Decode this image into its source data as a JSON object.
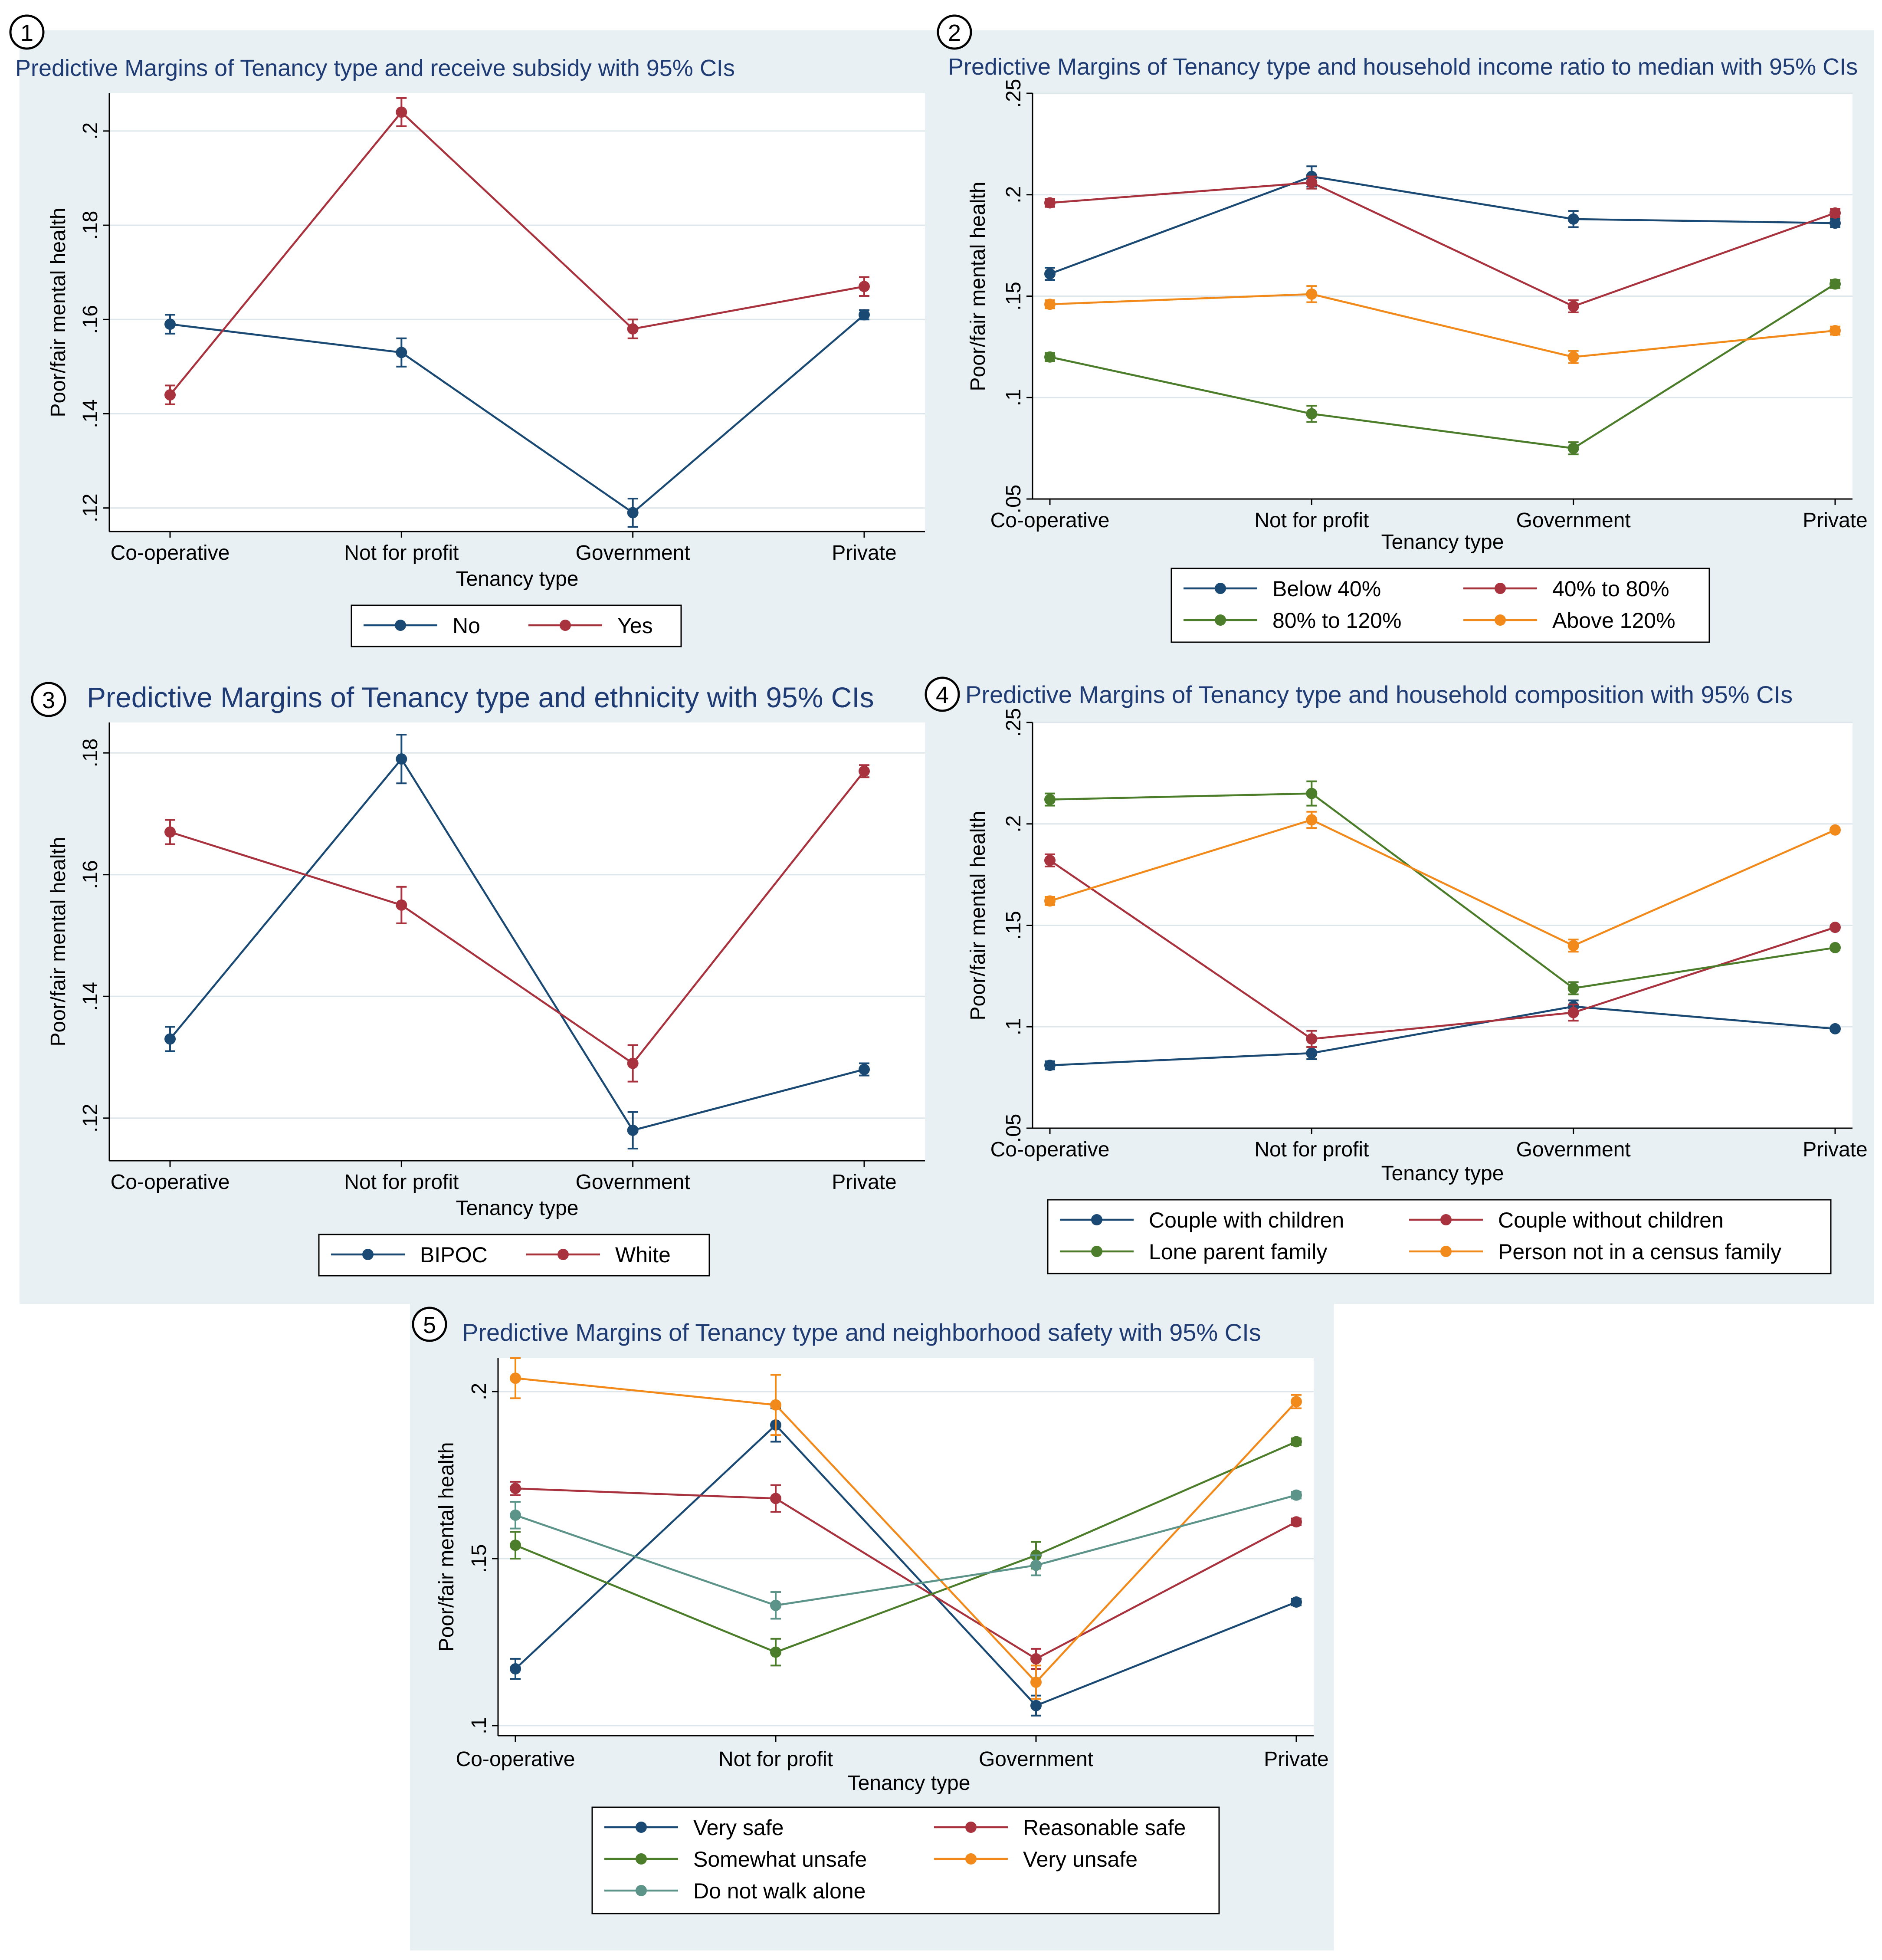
{
  "colors": {
    "panel_bg": "#e8f0f3",
    "plot_bg": "#ffffff",
    "grid": "#dde6ea",
    "title": "#1f3b73",
    "navy": "#1a4a74",
    "maroon": "#a8323e",
    "green": "#4b7d2a",
    "orange": "#f28a1b",
    "teal": "#5d9489"
  },
  "chart_data": [
    {
      "id": "panel-1",
      "number": "1",
      "type": "line",
      "title": "Predictive Margins of Tenancy type and receive subsidy with 95% CIs",
      "xlabel": "Tenancy type",
      "ylabel": "Poor/fair mental health",
      "categories": [
        "Co-operative",
        "Not for profit",
        "Government",
        "Private"
      ],
      "ylim": [
        0.115,
        0.208
      ],
      "yticks": [
        0.12,
        0.14,
        0.16,
        0.18,
        0.2
      ],
      "ytick_labels": [
        ".12",
        ".14",
        ".16",
        ".18",
        ".2"
      ],
      "legend_columns": 2,
      "series": [
        {
          "name": "No",
          "color": "#1a4a74",
          "values": [
            0.159,
            0.153,
            0.119,
            0.161
          ],
          "ci": [
            0.002,
            0.003,
            0.003,
            0.001
          ]
        },
        {
          "name": "Yes",
          "color": "#a8323e",
          "values": [
            0.144,
            0.204,
            0.158,
            0.167
          ],
          "ci": [
            0.002,
            0.003,
            0.002,
            0.002
          ]
        }
      ]
    },
    {
      "id": "panel-2",
      "number": "2",
      "type": "line",
      "title": "Predictive Margins of Tenancy type and household income ratio to median with 95% CIs",
      "xlabel": "Tenancy type",
      "ylabel": "Poor/fair mental health",
      "categories": [
        "Co-operative",
        "Not for profit",
        "Government",
        "Private"
      ],
      "ylim": [
        0.05,
        0.25
      ],
      "yticks": [
        0.05,
        0.1,
        0.15,
        0.2,
        0.25
      ],
      "ytick_labels": [
        ".05",
        ".1",
        ".15",
        ".2",
        ".25"
      ],
      "legend_columns": 2,
      "series": [
        {
          "name": "Below 40%",
          "color": "#1a4a74",
          "values": [
            0.161,
            0.209,
            0.188,
            0.186
          ],
          "ci": [
            0.003,
            0.005,
            0.004,
            0.002
          ]
        },
        {
          "name": "40% to 80%",
          "color": "#a8323e",
          "values": [
            0.196,
            0.206,
            0.145,
            0.191
          ],
          "ci": [
            0.002,
            0.003,
            0.003,
            0.002
          ]
        },
        {
          "name": "80% to 120%",
          "color": "#4b7d2a",
          "values": [
            0.12,
            0.092,
            0.075,
            0.156
          ],
          "ci": [
            0.002,
            0.004,
            0.003,
            0.002
          ]
        },
        {
          "name": "Above 120%",
          "color": "#f28a1b",
          "values": [
            0.146,
            0.151,
            0.12,
            0.133
          ],
          "ci": [
            0.002,
            0.004,
            0.003,
            0.002
          ]
        }
      ]
    },
    {
      "id": "panel-3",
      "number": "3",
      "type": "line",
      "title": "Predictive Margins of Tenancy type and ethnicity with 95% CIs",
      "xlabel": "Tenancy type",
      "ylabel": "Poor/fair mental health",
      "categories": [
        "Co-operative",
        "Not for profit",
        "Government",
        "Private"
      ],
      "ylim": [
        0.113,
        0.185
      ],
      "yticks": [
        0.12,
        0.14,
        0.16,
        0.18
      ],
      "ytick_labels": [
        ".12",
        ".14",
        ".16",
        ".18"
      ],
      "legend_columns": 2,
      "series": [
        {
          "name": "BIPOC",
          "color": "#1a4a74",
          "values": [
            0.133,
            0.179,
            0.118,
            0.128
          ],
          "ci": [
            0.002,
            0.004,
            0.003,
            0.001
          ]
        },
        {
          "name": "White",
          "color": "#a8323e",
          "values": [
            0.167,
            0.155,
            0.129,
            0.177
          ],
          "ci": [
            0.002,
            0.003,
            0.003,
            0.001
          ]
        }
      ]
    },
    {
      "id": "panel-4",
      "number": "4",
      "type": "line",
      "title": "Predictive Margins of Tenancy type and household composition with 95% CIs",
      "xlabel": "Tenancy type",
      "ylabel": "Poor/fair mental health",
      "categories": [
        "Co-operative",
        "Not for profit",
        "Government",
        "Private"
      ],
      "ylim": [
        0.05,
        0.25
      ],
      "yticks": [
        0.05,
        0.1,
        0.15,
        0.2,
        0.25
      ],
      "ytick_labels": [
        ".05",
        ".1",
        ".15",
        ".2",
        ".25"
      ],
      "legend_columns": 2,
      "series": [
        {
          "name": "Couple with children",
          "color": "#1a4a74",
          "values": [
            0.081,
            0.087,
            0.11,
            0.099
          ],
          "ci": [
            0.002,
            0.003,
            0.003,
            0.001
          ]
        },
        {
          "name": "Couple without children",
          "color": "#a8323e",
          "values": [
            0.182,
            0.094,
            0.107,
            0.149
          ],
          "ci": [
            0.003,
            0.004,
            0.004,
            0.001
          ]
        },
        {
          "name": "Lone parent family",
          "color": "#4b7d2a",
          "values": [
            0.212,
            0.215,
            0.119,
            0.139
          ],
          "ci": [
            0.003,
            0.006,
            0.003,
            0.001
          ]
        },
        {
          "name": "Person not in a census family",
          "color": "#f28a1b",
          "values": [
            0.162,
            0.202,
            0.14,
            0.197
          ],
          "ci": [
            0.002,
            0.004,
            0.003,
            0.001
          ]
        }
      ]
    },
    {
      "id": "panel-5",
      "number": "5",
      "type": "line",
      "title": "Predictive Margins of Tenancy type and neighborhood safety with 95% CIs",
      "xlabel": "Tenancy type",
      "ylabel": "Poor/fair mental health",
      "categories": [
        "Co-operative",
        "Not for profit",
        "Government",
        "Private"
      ],
      "ylim": [
        0.097,
        0.21
      ],
      "yticks": [
        0.1,
        0.15,
        0.2
      ],
      "ytick_labels": [
        ".1",
        ".15",
        ".2"
      ],
      "legend_columns": 2,
      "series": [
        {
          "name": "Very safe",
          "color": "#1a4a74",
          "values": [
            0.117,
            0.19,
            0.106,
            0.137
          ],
          "ci": [
            0.003,
            0.005,
            0.003,
            0.001
          ]
        },
        {
          "name": "Reasonable safe",
          "color": "#a8323e",
          "values": [
            0.171,
            0.168,
            0.12,
            0.161
          ],
          "ci": [
            0.002,
            0.004,
            0.003,
            0.001
          ]
        },
        {
          "name": "Somewhat unsafe",
          "color": "#4b7d2a",
          "values": [
            0.154,
            0.122,
            0.151,
            0.185
          ],
          "ci": [
            0.004,
            0.004,
            0.004,
            0.001
          ]
        },
        {
          "name": "Very unsafe",
          "color": "#f28a1b",
          "values": [
            0.204,
            0.196,
            0.113,
            0.197
          ],
          "ci": [
            0.006,
            0.009,
            0.005,
            0.002
          ]
        },
        {
          "name": "Do not walk alone",
          "color": "#5d9489",
          "values": [
            0.163,
            0.136,
            0.148,
            0.169
          ],
          "ci": [
            0.004,
            0.004,
            0.003,
            0.001
          ]
        }
      ]
    }
  ]
}
